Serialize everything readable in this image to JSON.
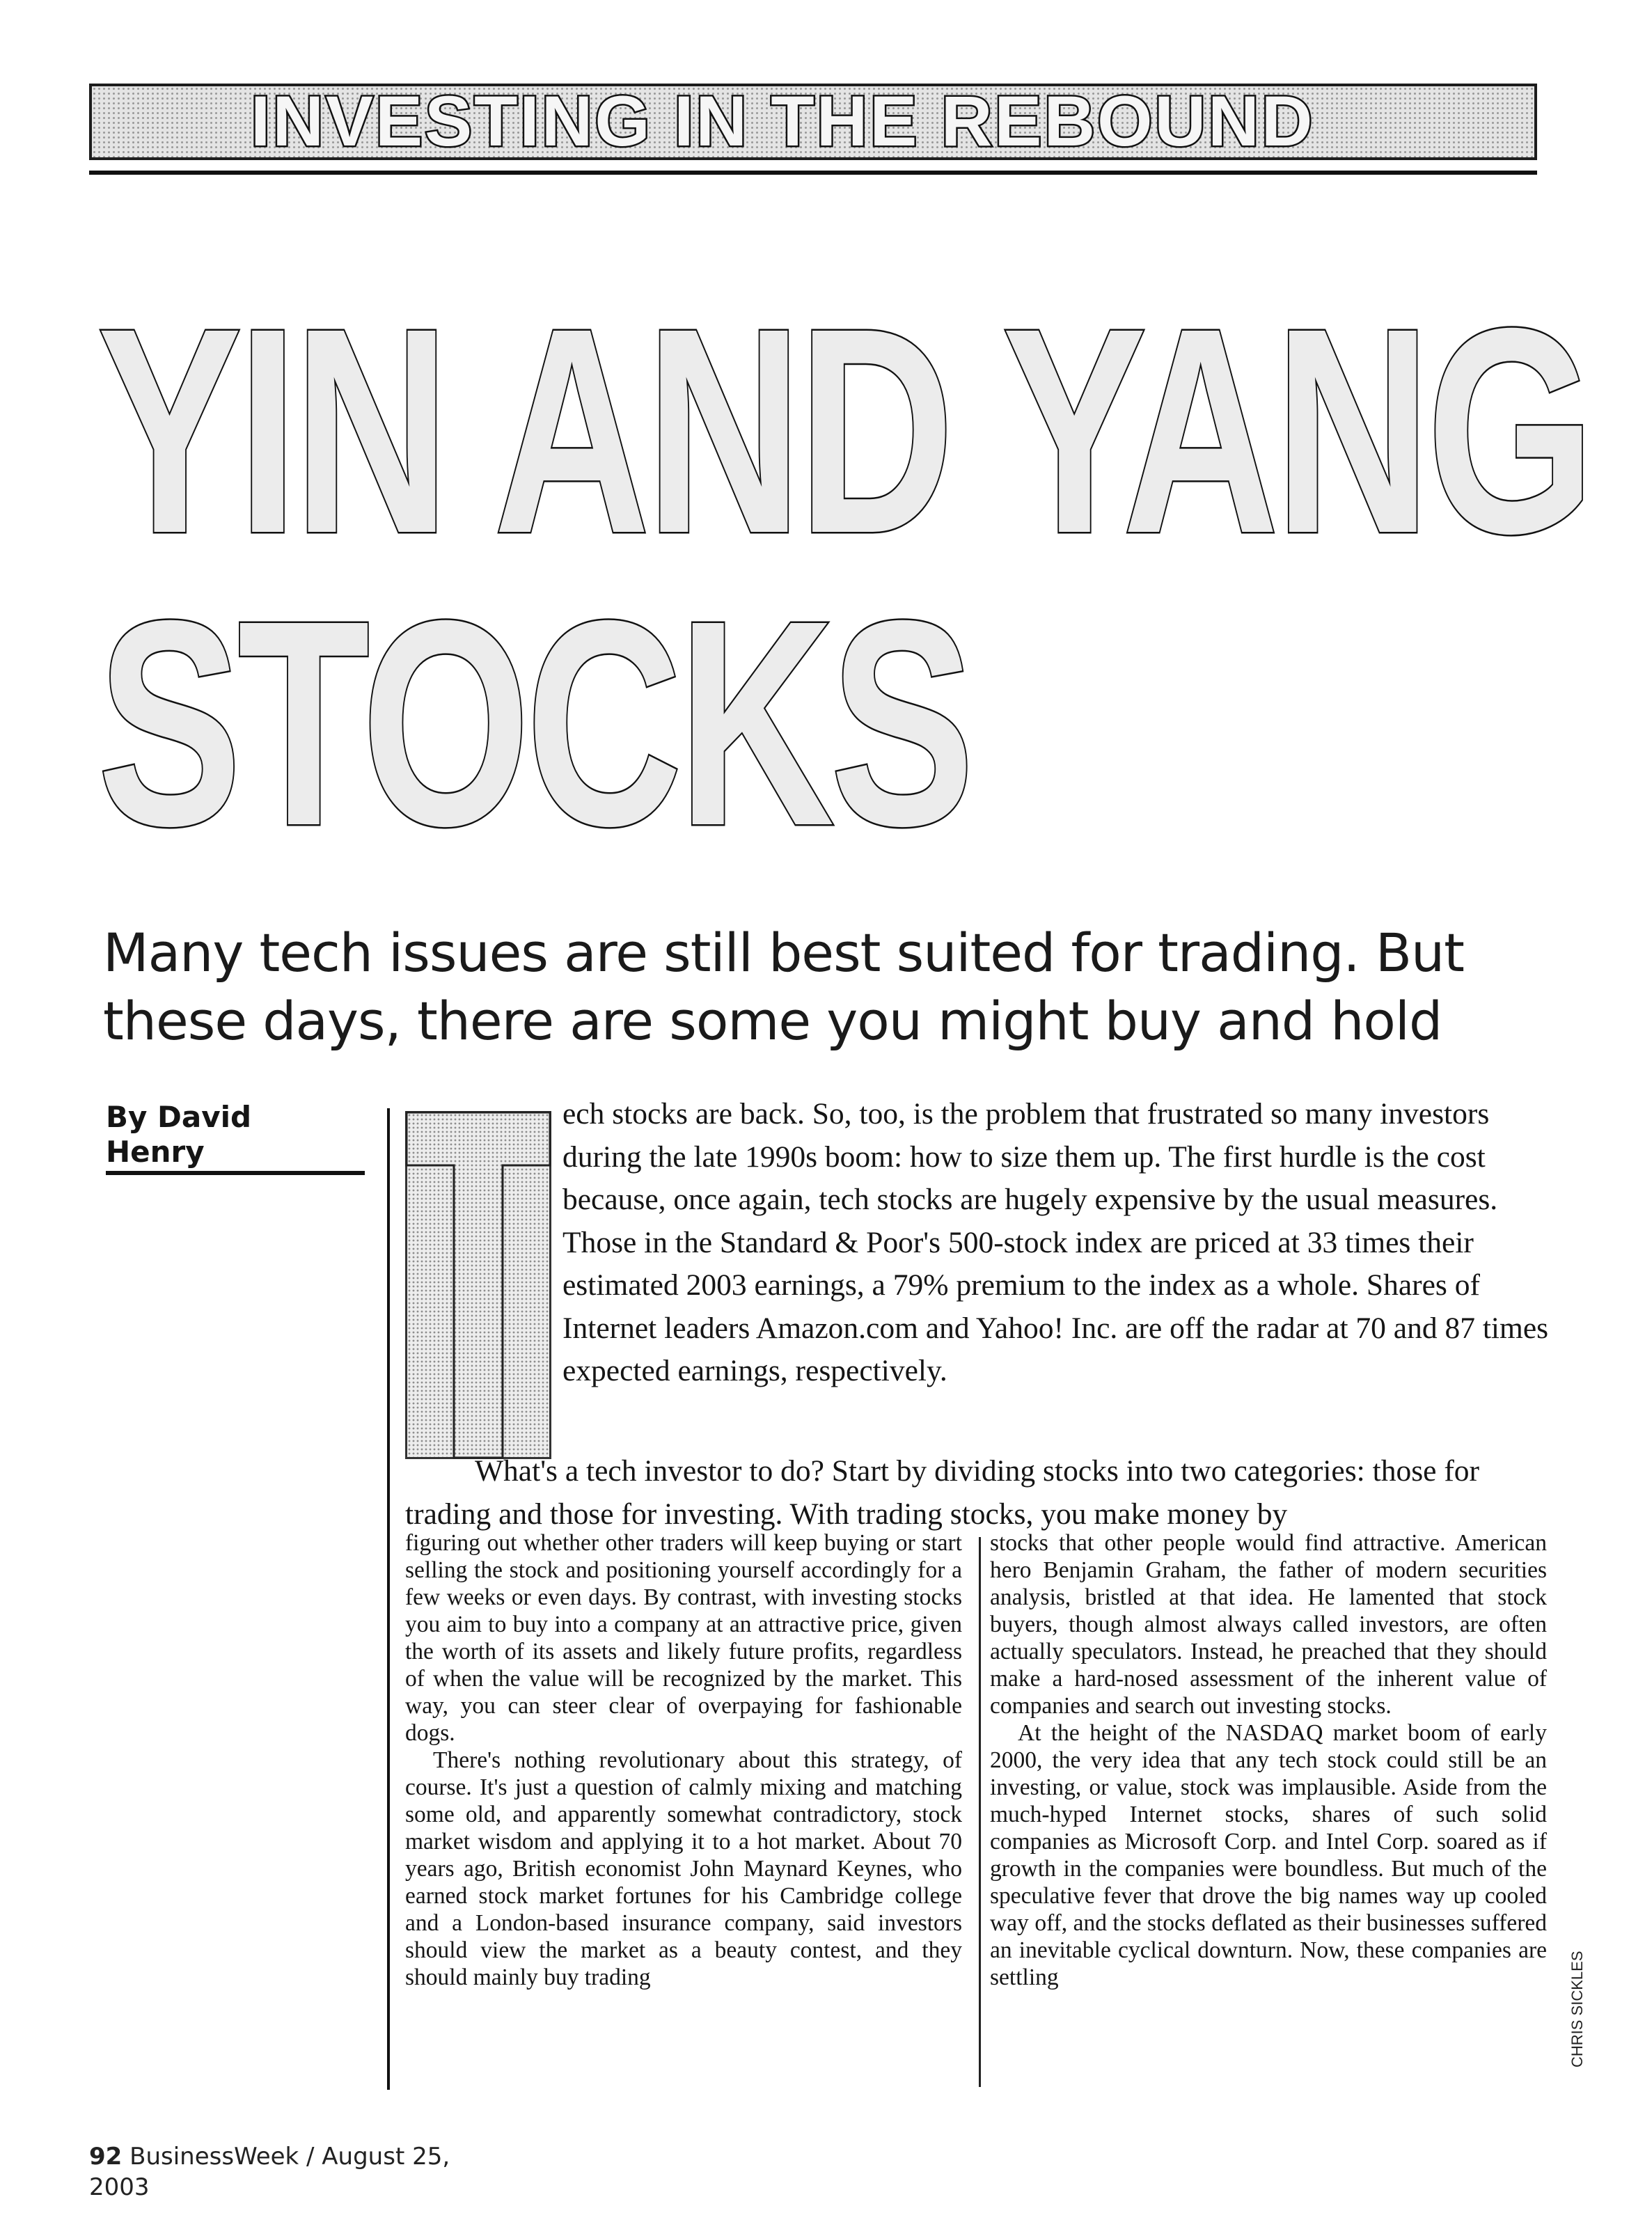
{
  "kicker": "INVESTING IN THE REBOUND",
  "headline": {
    "line1": "YIN AND YANG",
    "line2": "STOCKS"
  },
  "deck": "Many tech issues are still best suited for trading. But these days, there are some you might buy and hold",
  "byline": "By David Henry",
  "lede": {
    "dropcap": "T",
    "text": "ech stocks are back. So, too, is the problem that frustrated so many investors during the late 1990s boom: how to size them up. The first hurdle is the cost because, once again, tech stocks are hugely expensive by the usual measures. Those in the Standard & Poor's 500-stock index are priced at 33 times their estimated 2003 earnings, a 79% premium to the index as a whole. Shares of Internet leaders Amazon.com and Yahoo! Inc. are off the radar at 70 and 87 times expected earnings, respectively.",
    "para2": "What's a tech investor to do? Start by dividing stocks into two categories: those for trading and those for investing. With trading stocks, you make money by"
  },
  "columns": {
    "left": [
      "figuring out whether other traders will keep buying or start selling the stock and positioning yourself accordingly for a few weeks or even days. By contrast, with investing stocks you aim to buy into a company at an attractive price, given the worth of its assets and likely future profits, regardless of when the value will be recognized by the market. This way, you can steer clear of overpaying for fashionable dogs.",
      "There's nothing revolutionary about this strategy, of course. It's just a question of calmly mixing and matching some old, and apparently somewhat contradictory, stock market wisdom and applying it to a hot market. About 70 years ago, British economist John Maynard Keynes, who earned stock market fortunes for his Cambridge college and a London-based insurance company, said investors should view the market as a beauty contest, and they should mainly buy trading"
    ],
    "right": [
      "stocks that other people would find attractive. American hero Benjamin Graham, the father of modern securities analysis, bristled at that idea. He lamented that stock buyers, though almost always called investors, are often actually speculators. Instead, he preached that they should make a hard-nosed assessment of the inherent value of companies and search out investing stocks.",
      "At the height of the NASDAQ market boom of early 2000, the very idea that any tech stock could still be an investing, or value, stock was implausible. Aside from the much-hyped Internet stocks, shares of such solid companies as Microsoft Corp. and Intel Corp. soared as if growth in the companies were boundless. But much of the speculative fever that drove the big names way up cooled way off, and the stocks deflated as their businesses suffered an inevitable cyclical downturn. Now, these companies are settling"
    ]
  },
  "photo_credit": "CHRIS SICKLES",
  "folio": {
    "page": "92",
    "publication": "BusinessWeek / August 25, 2003"
  }
}
